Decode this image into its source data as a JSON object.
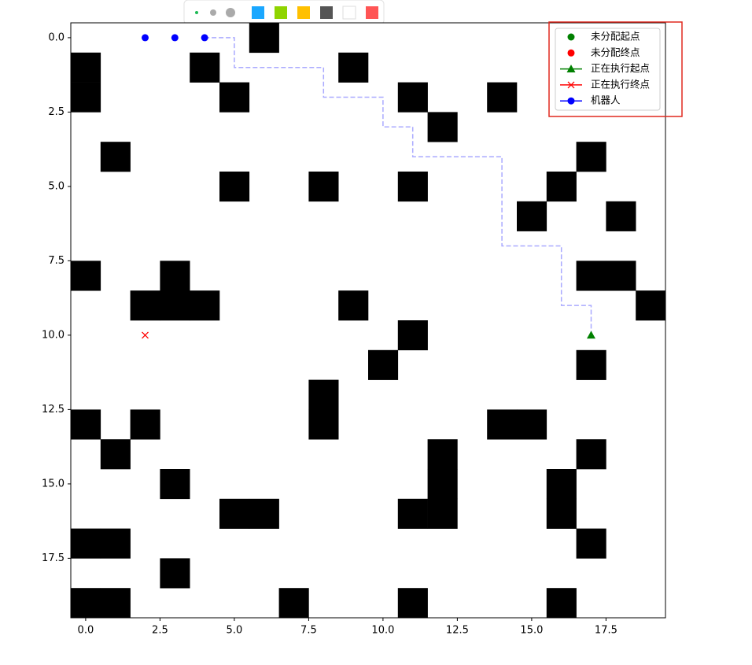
{
  "chart_data": {
    "type": "grid",
    "xlim": [
      -0.5,
      19.5
    ],
    "ylim": [
      19.5,
      -0.5
    ],
    "xticks": [
      {
        "value": 0,
        "label": "0.0"
      },
      2.5,
      {
        "value": 5,
        "label": "5.0"
      },
      7.5,
      {
        "value": 10,
        "label": "10.0"
      },
      12.5,
      {
        "value": 15,
        "label": "15.0"
      },
      17.5
    ],
    "yticks": [
      {
        "value": 0,
        "label": "0.0"
      },
      2.5,
      {
        "value": 5,
        "label": "5.0"
      },
      7.5,
      {
        "value": 10,
        "label": "10.0"
      },
      12.5,
      {
        "value": 15,
        "label": "15.0"
      },
      17.5
    ],
    "obstacles": {
      "color": "#000000",
      "x": [
        6,
        0,
        4,
        9,
        0,
        5,
        11,
        14,
        12,
        1,
        17,
        5,
        8,
        11,
        16,
        15,
        18,
        0,
        3,
        17,
        18,
        2,
        3,
        4,
        9,
        19,
        11,
        10,
        17,
        8,
        0,
        2,
        8,
        14,
        15,
        1,
        12,
        17,
        3,
        12,
        16,
        5,
        6,
        11,
        12,
        16,
        0,
        1,
        17,
        3,
        0,
        1,
        7,
        11,
        16
      ],
      "y": [
        0,
        1,
        1,
        1,
        2,
        2,
        2,
        2,
        3,
        4,
        4,
        5,
        5,
        5,
        5,
        6,
        6,
        8,
        8,
        8,
        8,
        9,
        9,
        9,
        9,
        9,
        10,
        11,
        11,
        12,
        13,
        13,
        13,
        13,
        13,
        14,
        14,
        14,
        15,
        15,
        15,
        16,
        16,
        16,
        16,
        16,
        17,
        17,
        17,
        18,
        19,
        19,
        19,
        19,
        19
      ]
    },
    "path": {
      "color": "#aaaaff",
      "x": [
        4,
        5,
        5,
        8,
        8,
        10,
        10,
        11,
        11,
        14,
        14,
        16,
        16,
        17,
        17
      ],
      "y": [
        0,
        0,
        1,
        1,
        2,
        2,
        3,
        3,
        4,
        4,
        7,
        7,
        9,
        9,
        10
      ]
    },
    "series": [
      {
        "name": "未分配起点",
        "color": "#008000",
        "marker": "o",
        "line": false,
        "x": [],
        "y": []
      },
      {
        "name": "未分配终点",
        "color": "#ff0000",
        "marker": "o",
        "line": false,
        "x": [],
        "y": []
      },
      {
        "name": "正在执行起点",
        "color": "#008000",
        "marker": "^",
        "line": true,
        "x": [
          17
        ],
        "y": [
          10
        ]
      },
      {
        "name": "正在执行终点",
        "color": "#ff0000",
        "marker": "x",
        "line": true,
        "x": [
          2
        ],
        "y": [
          10
        ]
      },
      {
        "name": "机器人",
        "color": "#0000ff",
        "marker": "o",
        "line": true,
        "x": [
          2,
          3,
          4
        ],
        "y": [
          0,
          0,
          0
        ]
      }
    ],
    "legend": "upper right"
  }
}
